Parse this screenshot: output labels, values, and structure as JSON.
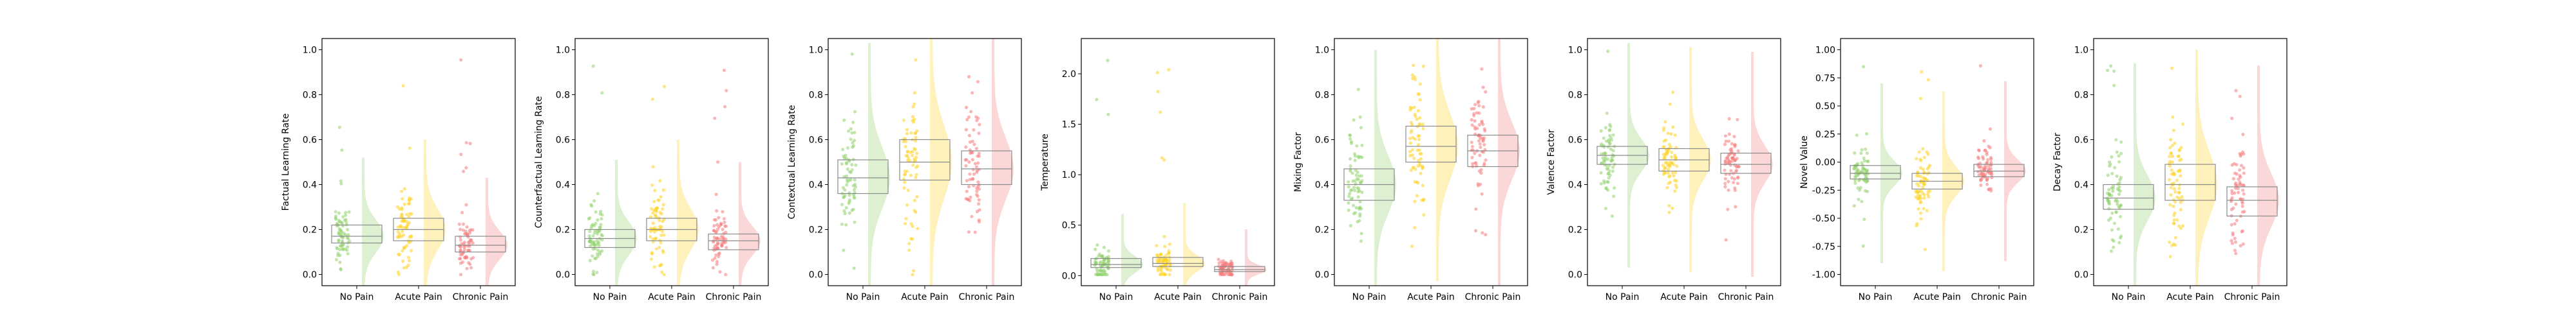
{
  "colors": {
    "No Pain": "#8fd16a",
    "Acute Pain": "#ffd21f",
    "Chronic Pain": "#f57a7a"
  },
  "chart_data": [
    {
      "type": "box",
      "ylabel": "Factual Learning Rate",
      "ylim": [
        -0.05,
        1.05
      ],
      "yticks": [
        0.0,
        0.2,
        0.4,
        0.6,
        0.8,
        1.0
      ],
      "ytick_labels": [
        "0.0",
        "0.2",
        "0.4",
        "0.6",
        "0.8",
        "1.0"
      ],
      "categories": [
        "No Pain",
        "Acute Pain",
        "Chronic Pain"
      ],
      "series": [
        {
          "name": "No Pain",
          "q1": 0.14,
          "median": 0.17,
          "q3": 0.22,
          "spread": 0.35
        },
        {
          "name": "Acute Pain",
          "q1": 0.15,
          "median": 0.2,
          "q3": 0.25,
          "spread": 0.4
        },
        {
          "name": "Chronic Pain",
          "q1": 0.1,
          "median": 0.13,
          "q3": 0.17,
          "spread": 0.3
        }
      ]
    },
    {
      "type": "box",
      "ylabel": "Counterfactual Learning Rate",
      "ylim": [
        -0.05,
        1.05
      ],
      "yticks": [
        0.0,
        0.2,
        0.4,
        0.6,
        0.8,
        1.0
      ],
      "ytick_labels": [
        "0.0",
        "0.2",
        "0.4",
        "0.6",
        "0.8",
        "1.0"
      ],
      "categories": [
        "No Pain",
        "Acute Pain",
        "Chronic Pain"
      ],
      "series": [
        {
          "name": "No Pain",
          "q1": 0.12,
          "median": 0.16,
          "q3": 0.2,
          "spread": 0.35
        },
        {
          "name": "Acute Pain",
          "q1": 0.15,
          "median": 0.2,
          "q3": 0.25,
          "spread": 0.4
        },
        {
          "name": "Chronic Pain",
          "q1": 0.11,
          "median": 0.15,
          "q3": 0.18,
          "spread": 0.35
        }
      ]
    },
    {
      "type": "box",
      "ylabel": "Contextual Learning Rate",
      "ylim": [
        -0.05,
        1.05
      ],
      "yticks": [
        0.0,
        0.2,
        0.4,
        0.6,
        0.8,
        1.0
      ],
      "ytick_labels": [
        "0.0",
        "0.2",
        "0.4",
        "0.6",
        "0.8",
        "1.0"
      ],
      "categories": [
        "No Pain",
        "Acute Pain",
        "Chronic Pain"
      ],
      "series": [
        {
          "name": "No Pain",
          "q1": 0.36,
          "median": 0.43,
          "q3": 0.51,
          "spread": 0.6
        },
        {
          "name": "Acute Pain",
          "q1": 0.42,
          "median": 0.5,
          "q3": 0.6,
          "spread": 0.6
        },
        {
          "name": "Chronic Pain",
          "q1": 0.4,
          "median": 0.47,
          "q3": 0.55,
          "spread": 0.6
        }
      ]
    },
    {
      "type": "box",
      "ylabel": "Temperature",
      "ylim": [
        -0.1,
        2.35
      ],
      "yticks": [
        0.0,
        0.5,
        1.0,
        1.5,
        2.0
      ],
      "ytick_labels": [
        "0.0",
        "0.5",
        "1.0",
        "1.5",
        "2.0"
      ],
      "categories": [
        "No Pain",
        "Acute Pain",
        "Chronic Pain"
      ],
      "series": [
        {
          "name": "No Pain",
          "q1": 0.08,
          "median": 0.11,
          "q3": 0.17,
          "spread": 0.5
        },
        {
          "name": "Acute Pain",
          "q1": 0.09,
          "median": 0.12,
          "q3": 0.18,
          "spread": 0.6
        },
        {
          "name": "Chronic Pain",
          "q1": 0.04,
          "median": 0.06,
          "q3": 0.09,
          "spread": 0.4
        }
      ]
    },
    {
      "type": "box",
      "ylabel": "Mixing Factor",
      "ylim": [
        -0.05,
        1.05
      ],
      "yticks": [
        0.0,
        0.2,
        0.4,
        0.6,
        0.8,
        1.0
      ],
      "ytick_labels": [
        "0.0",
        "0.2",
        "0.4",
        "0.6",
        "0.8",
        "1.0"
      ],
      "categories": [
        "No Pain",
        "Acute Pain",
        "Chronic Pain"
      ],
      "series": [
        {
          "name": "No Pain",
          "q1": 0.33,
          "median": 0.4,
          "q3": 0.47,
          "spread": 0.6
        },
        {
          "name": "Acute Pain",
          "q1": 0.5,
          "median": 0.57,
          "q3": 0.66,
          "spread": 0.6
        },
        {
          "name": "Chronic Pain",
          "q1": 0.48,
          "median": 0.55,
          "q3": 0.62,
          "spread": 0.6
        }
      ]
    },
    {
      "type": "box",
      "ylabel": "Valence Factor",
      "ylim": [
        -0.05,
        1.05
      ],
      "yticks": [
        0.0,
        0.2,
        0.4,
        0.6,
        0.8,
        1.0
      ],
      "ytick_labels": [
        "0.0",
        "0.2",
        "0.4",
        "0.6",
        "0.8",
        "1.0"
      ],
      "categories": [
        "No Pain",
        "Acute Pain",
        "Chronic Pain"
      ],
      "series": [
        {
          "name": "No Pain",
          "q1": 0.49,
          "median": 0.53,
          "q3": 0.57,
          "spread": 0.5
        },
        {
          "name": "Acute Pain",
          "q1": 0.46,
          "median": 0.51,
          "q3": 0.56,
          "spread": 0.5
        },
        {
          "name": "Chronic Pain",
          "q1": 0.45,
          "median": 0.49,
          "q3": 0.54,
          "spread": 0.5
        }
      ]
    },
    {
      "type": "box",
      "ylabel": "Novel Value",
      "ylim": [
        -1.1,
        1.1
      ],
      "yticks": [
        -1.0,
        -0.75,
        -0.5,
        -0.25,
        0.0,
        0.25,
        0.5,
        0.75,
        1.0
      ],
      "ytick_labels": [
        "-1.00",
        "-0.75",
        "-0.50",
        "-0.25",
        "0.00",
        "0.25",
        "0.50",
        "0.75",
        "1.00"
      ],
      "categories": [
        "No Pain",
        "Acute Pain",
        "Chronic Pain"
      ],
      "series": [
        {
          "name": "No Pain",
          "q1": -0.15,
          "median": -0.1,
          "q3": -0.03,
          "spread": 0.8
        },
        {
          "name": "Acute Pain",
          "q1": -0.24,
          "median": -0.17,
          "q3": -0.1,
          "spread": 0.8
        },
        {
          "name": "Chronic Pain",
          "q1": -0.13,
          "median": -0.08,
          "q3": -0.02,
          "spread": 0.8
        }
      ]
    },
    {
      "type": "box",
      "ylabel": "Decay Factor",
      "ylim": [
        -0.05,
        1.05
      ],
      "yticks": [
        0.0,
        0.2,
        0.4,
        0.6,
        0.8,
        1.0
      ],
      "ytick_labels": [
        "0.0",
        "0.2",
        "0.4",
        "0.6",
        "0.8",
        "1.0"
      ],
      "categories": [
        "No Pain",
        "Acute Pain",
        "Chronic Pain"
      ],
      "series": [
        {
          "name": "No Pain",
          "q1": 0.29,
          "median": 0.34,
          "q3": 0.4,
          "spread": 0.6
        },
        {
          "name": "Acute Pain",
          "q1": 0.33,
          "median": 0.4,
          "q3": 0.49,
          "spread": 0.6
        },
        {
          "name": "Chronic Pain",
          "q1": 0.26,
          "median": 0.33,
          "q3": 0.39,
          "spread": 0.6
        }
      ]
    }
  ]
}
